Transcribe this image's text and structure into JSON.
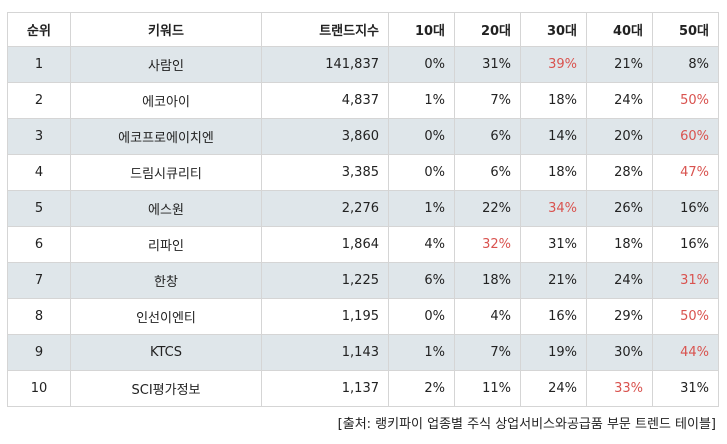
{
  "table": {
    "headers": [
      "순위",
      "키워드",
      "트랜드지수",
      "10대",
      "20대",
      "30대",
      "40대",
      "50대"
    ],
    "highlight_color": "#d9534f",
    "rows": [
      {
        "rank": "1",
        "keyword": "사람인",
        "index": "141,837",
        "a10": "0%",
        "a20": "31%",
        "a30": "39%",
        "a40": "21%",
        "a50": "8%",
        "highlight": "a30"
      },
      {
        "rank": "2",
        "keyword": "에코아이",
        "index": "4,837",
        "a10": "1%",
        "a20": "7%",
        "a30": "18%",
        "a40": "24%",
        "a50": "50%",
        "highlight": "a50"
      },
      {
        "rank": "3",
        "keyword": "에코프로에이치엔",
        "index": "3,860",
        "a10": "0%",
        "a20": "6%",
        "a30": "14%",
        "a40": "20%",
        "a50": "60%",
        "highlight": "a50"
      },
      {
        "rank": "4",
        "keyword": "드림시큐리티",
        "index": "3,385",
        "a10": "0%",
        "a20": "6%",
        "a30": "18%",
        "a40": "28%",
        "a50": "47%",
        "highlight": "a50"
      },
      {
        "rank": "5",
        "keyword": "에스원",
        "index": "2,276",
        "a10": "1%",
        "a20": "22%",
        "a30": "34%",
        "a40": "26%",
        "a50": "16%",
        "highlight": "a30"
      },
      {
        "rank": "6",
        "keyword": "리파인",
        "index": "1,864",
        "a10": "4%",
        "a20": "32%",
        "a30": "31%",
        "a40": "18%",
        "a50": "16%",
        "highlight": "a20"
      },
      {
        "rank": "7",
        "keyword": "한창",
        "index": "1,225",
        "a10": "6%",
        "a20": "18%",
        "a30": "21%",
        "a40": "24%",
        "a50": "31%",
        "highlight": "a50"
      },
      {
        "rank": "8",
        "keyword": "인선이엔티",
        "index": "1,195",
        "a10": "0%",
        "a20": "4%",
        "a30": "16%",
        "a40": "29%",
        "a50": "50%",
        "highlight": "a50"
      },
      {
        "rank": "9",
        "keyword": "KTCS",
        "index": "1,143",
        "a10": "1%",
        "a20": "7%",
        "a30": "19%",
        "a40": "30%",
        "a50": "44%",
        "highlight": "a50"
      },
      {
        "rank": "10",
        "keyword": "SCI평가정보",
        "index": "1,137",
        "a10": "2%",
        "a20": "11%",
        "a30": "24%",
        "a40": "33%",
        "a50": "31%",
        "highlight": "a40"
      }
    ]
  },
  "source": "[출처: 랭키파이 업종별 주식 상업서비스와공급품 부문 트렌드 테이블]"
}
